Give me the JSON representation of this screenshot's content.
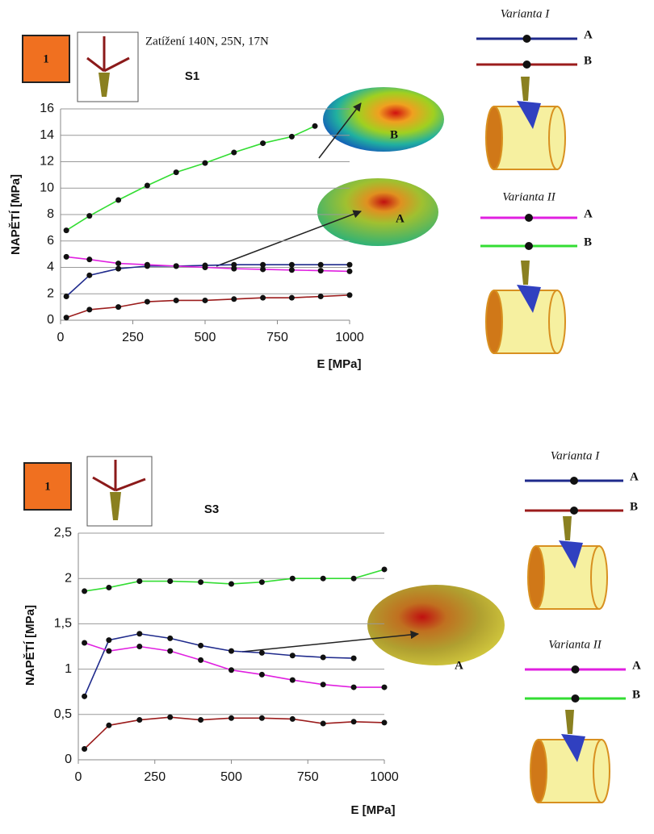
{
  "chart_data": [
    {
      "type": "line",
      "badge": "1",
      "caption": "Zatížení 140N, 25N, 17N",
      "title": "S1",
      "x_label": "E [MPa]",
      "y_label": "NAPĚTÍ [MPa]",
      "xlim": [
        0,
        1000
      ],
      "xticks": [
        0,
        250,
        500,
        750,
        1000
      ],
      "ylim": [
        0,
        16
      ],
      "yticks": [
        0,
        2,
        4,
        6,
        8,
        10,
        12,
        14,
        16
      ],
      "grid": true,
      "annotations": [
        "B",
        "A"
      ],
      "series": [
        {
          "name": "A",
          "group": "Varianta I",
          "color": "#1f2a8c",
          "x": [
            20,
            100,
            200,
            300,
            400,
            500,
            600,
            700,
            800,
            900,
            1000
          ],
          "values": [
            1.8,
            3.4,
            3.9,
            4.1,
            4.1,
            4.15,
            4.2,
            4.2,
            4.2,
            4.2,
            4.2
          ]
        },
        {
          "name": "B",
          "group": "Varianta I",
          "color": "#9b1c1c",
          "x": [
            20,
            100,
            200,
            300,
            400,
            500,
            600,
            700,
            800,
            900,
            1000
          ],
          "values": [
            0.2,
            0.8,
            1.0,
            1.4,
            1.5,
            1.5,
            1.6,
            1.7,
            1.7,
            1.8,
            1.9
          ]
        },
        {
          "name": "A",
          "group": "Varianta II",
          "color": "#e020e0",
          "x": [
            20,
            100,
            200,
            300,
            400,
            500,
            600,
            700,
            800,
            900,
            1000
          ],
          "values": [
            4.8,
            4.6,
            4.3,
            4.2,
            4.1,
            4.0,
            3.9,
            3.85,
            3.8,
            3.75,
            3.7
          ]
        },
        {
          "name": "B",
          "group": "Varianta II",
          "color": "#33dd33",
          "x": [
            20,
            100,
            200,
            300,
            400,
            500,
            600,
            700,
            800,
            880
          ],
          "values": [
            6.8,
            7.9,
            9.1,
            10.2,
            11.2,
            11.9,
            12.7,
            13.4,
            13.9,
            14.7
          ]
        }
      ]
    },
    {
      "type": "line",
      "badge": "1",
      "title": "S3",
      "x_label": "E [MPa]",
      "y_label": "NAPĚTÍ [MPa]",
      "xlim": [
        0,
        1000
      ],
      "xticks": [
        0,
        250,
        500,
        750,
        1000
      ],
      "ylim": [
        0,
        2.5
      ],
      "yticks": [
        0,
        {
          "value": 0.5,
          "label": "0,5"
        },
        1,
        {
          "value": 1.5,
          "label": "1,5"
        },
        2,
        {
          "value": 2.5,
          "label": "2,5"
        }
      ],
      "grid": true,
      "annotations": [
        "A"
      ],
      "series": [
        {
          "name": "A",
          "group": "Varianta I",
          "color": "#1f2a8c",
          "x": [
            20,
            100,
            200,
            300,
            400,
            500,
            600,
            700,
            800,
            900
          ],
          "values": [
            0.7,
            1.32,
            1.39,
            1.34,
            1.26,
            1.2,
            1.18,
            1.15,
            1.13,
            1.12
          ]
        },
        {
          "name": "B",
          "group": "Varianta I",
          "color": "#9b1c1c",
          "x": [
            20,
            100,
            200,
            300,
            400,
            500,
            600,
            700,
            800,
            900,
            1000
          ],
          "values": [
            0.12,
            0.38,
            0.44,
            0.47,
            0.44,
            0.46,
            0.46,
            0.45,
            0.4,
            0.42,
            0.41
          ]
        },
        {
          "name": "A",
          "group": "Varianta II",
          "color": "#e020e0",
          "x": [
            20,
            100,
            200,
            300,
            400,
            500,
            600,
            700,
            800,
            900,
            1000
          ],
          "values": [
            1.29,
            1.2,
            1.25,
            1.2,
            1.1,
            0.99,
            0.94,
            0.88,
            0.83,
            0.8,
            0.8
          ]
        },
        {
          "name": "B",
          "group": "Varianta II",
          "color": "#33dd33",
          "x": [
            20,
            100,
            200,
            300,
            400,
            500,
            600,
            700,
            800,
            900,
            1000
          ],
          "values": [
            1.86,
            1.9,
            1.97,
            1.97,
            1.96,
            1.94,
            1.96,
            2.0,
            2.0,
            2.0,
            2.1
          ]
        }
      ]
    }
  ]
}
